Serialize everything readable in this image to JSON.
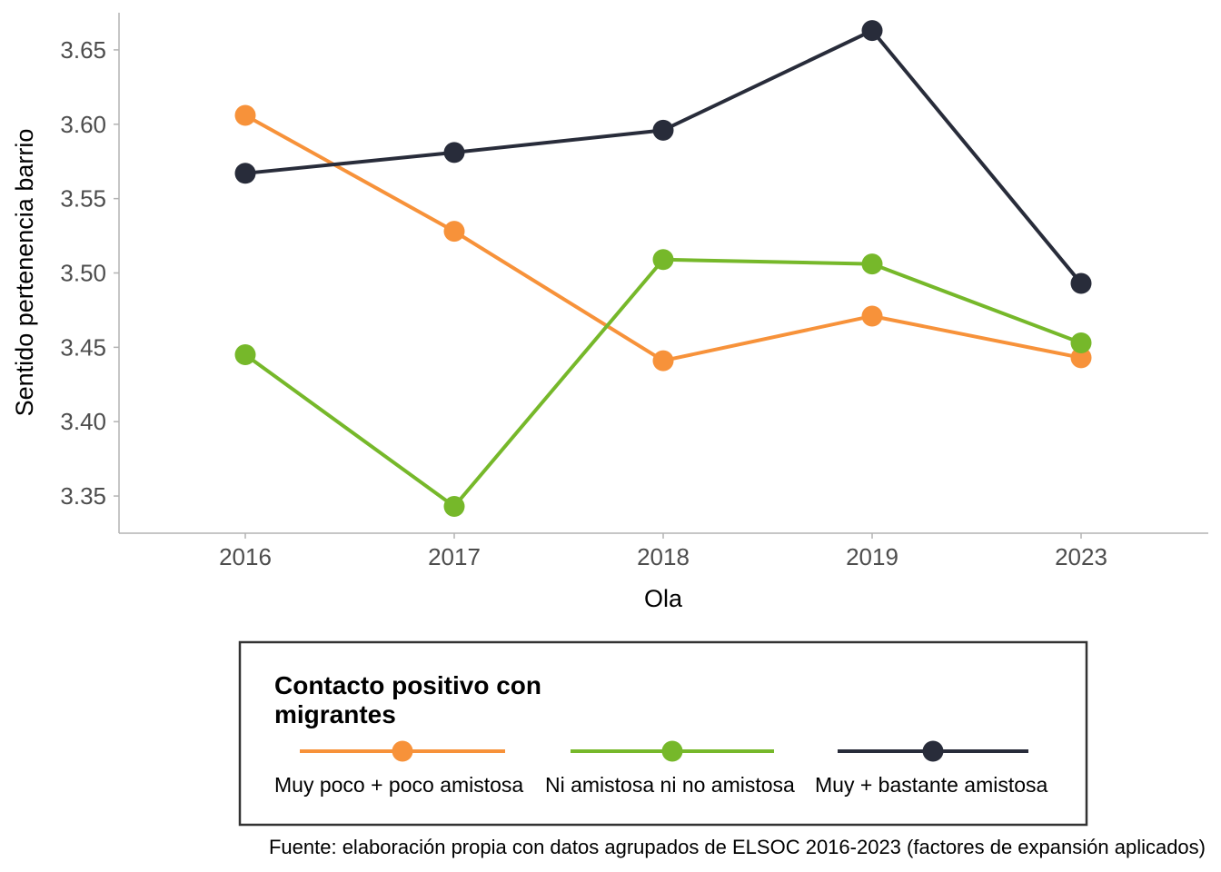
{
  "chart_data": {
    "type": "line",
    "categories": [
      "2016",
      "2017",
      "2018",
      "2019",
      "2023"
    ],
    "xlabel": "Ola",
    "ylabel": "Sentido pertenencia barrio",
    "ylim": [
      3.325,
      3.675
    ],
    "yticks": [
      3.35,
      3.4,
      3.45,
      3.5,
      3.55,
      3.6,
      3.65
    ],
    "ytick_labels": [
      "3.35",
      "3.40",
      "3.45",
      "3.50",
      "3.55",
      "3.60",
      "3.65"
    ],
    "grid": false,
    "legend": {
      "title_lines": [
        "Contacto positivo con",
        "migrantes"
      ],
      "position": "bottom"
    },
    "series": [
      {
        "name": "Muy poco + poco amistosa",
        "color": "#F7923A",
        "values": [
          3.606,
          3.528,
          3.441,
          3.471,
          3.443
        ]
      },
      {
        "name": "Ni amistosa ni no amistosa",
        "color": "#76B82A",
        "values": [
          3.445,
          3.343,
          3.509,
          3.506,
          3.453
        ]
      },
      {
        "name": "Muy + bastante amistosa",
        "color": "#282C3A",
        "values": [
          3.567,
          3.581,
          3.596,
          3.663,
          3.493
        ]
      }
    ],
    "caption": "Fuente: elaboración propia con datos agrupados de ELSOC 2016-2023 (factores de expansión aplicados)"
  }
}
